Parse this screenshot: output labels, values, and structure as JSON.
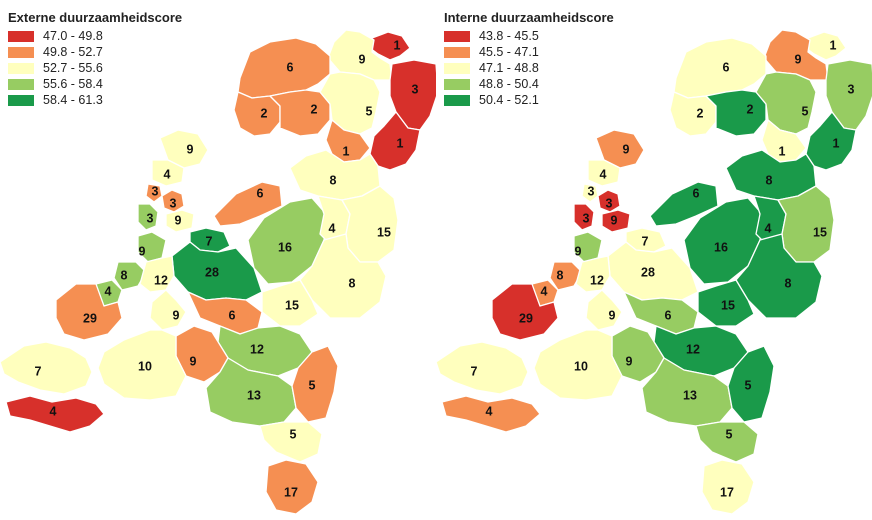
{
  "maps": [
    {
      "id": "externe",
      "title": "Externe duurzaamheidscore",
      "legend": [
        {
          "label": "47.0 - 49.8",
          "color": "#d7302b"
        },
        {
          "label": "49.8 - 52.7",
          "color": "#f58f52"
        },
        {
          "label": "52.7 - 55.6",
          "color": "#ffffbe"
        },
        {
          "label": "55.6 - 58.4",
          "color": "#97cc62"
        },
        {
          "label": "58.4 - 61.3",
          "color": "#1a9a4a"
        }
      ],
      "regions": [
        {
          "label": "1",
          "cls": 0
        },
        {
          "label": "9",
          "cls": 2
        },
        {
          "label": "6",
          "cls": 1
        },
        {
          "label": "2",
          "cls": 1
        },
        {
          "label": "2",
          "cls": 1
        },
        {
          "label": "5",
          "cls": 2
        },
        {
          "label": "3",
          "cls": 0
        },
        {
          "label": "1",
          "cls": 0
        },
        {
          "label": "1",
          "cls": 1
        },
        {
          "label": "8",
          "cls": 2
        },
        {
          "label": "9",
          "cls": 2
        },
        {
          "label": "4",
          "cls": 2
        },
        {
          "label": "3",
          "cls": 1
        },
        {
          "label": "3",
          "cls": 1
        },
        {
          "label": "3",
          "cls": 3
        },
        {
          "label": "9",
          "cls": 2
        },
        {
          "label": "6",
          "cls": 1
        },
        {
          "label": "7",
          "cls": 4
        },
        {
          "label": "16",
          "cls": 3
        },
        {
          "label": "4",
          "cls": 2
        },
        {
          "label": "15",
          "cls": 2
        },
        {
          "label": "9",
          "cls": 3
        },
        {
          "label": "28",
          "cls": 4
        },
        {
          "label": "8",
          "cls": 3
        },
        {
          "label": "12",
          "cls": 2
        },
        {
          "label": "4",
          "cls": 3
        },
        {
          "label": "8",
          "cls": 2
        },
        {
          "label": "15",
          "cls": 2
        },
        {
          "label": "29",
          "cls": 1
        },
        {
          "label": "9",
          "cls": 2
        },
        {
          "label": "6",
          "cls": 1
        },
        {
          "label": "12",
          "cls": 3
        },
        {
          "label": "9",
          "cls": 1
        },
        {
          "label": "10",
          "cls": 2
        },
        {
          "label": "7",
          "cls": 2
        },
        {
          "label": "13",
          "cls": 3
        },
        {
          "label": "5",
          "cls": 1
        },
        {
          "label": "4",
          "cls": 0
        },
        {
          "label": "5",
          "cls": 2
        },
        {
          "label": "17",
          "cls": 1
        }
      ]
    },
    {
      "id": "interne",
      "title": "Interne duurzaamheidscore",
      "legend": [
        {
          "label": "43.8 - 45.5",
          "color": "#d7302b"
        },
        {
          "label": "45.5 - 47.1",
          "color": "#f58f52"
        },
        {
          "label": "47.1 - 48.8",
          "color": "#ffffbe"
        },
        {
          "label": "48.8 - 50.4",
          "color": "#97cc62"
        },
        {
          "label": "50.4 - 52.1",
          "color": "#1a9a4a"
        }
      ],
      "regions": [
        {
          "label": "1",
          "cls": 2
        },
        {
          "label": "9",
          "cls": 1
        },
        {
          "label": "6",
          "cls": 2
        },
        {
          "label": "2",
          "cls": 2
        },
        {
          "label": "2",
          "cls": 4
        },
        {
          "label": "5",
          "cls": 3
        },
        {
          "label": "3",
          "cls": 3
        },
        {
          "label": "1",
          "cls": 4
        },
        {
          "label": "1",
          "cls": 2
        },
        {
          "label": "8",
          "cls": 4
        },
        {
          "label": "9",
          "cls": 1
        },
        {
          "label": "4",
          "cls": 2
        },
        {
          "label": "3",
          "cls": 2
        },
        {
          "label": "3",
          "cls": 0
        },
        {
          "label": "3",
          "cls": 0
        },
        {
          "label": "9",
          "cls": 0
        },
        {
          "label": "6",
          "cls": 4
        },
        {
          "label": "7",
          "cls": 2
        },
        {
          "label": "16",
          "cls": 4
        },
        {
          "label": "4",
          "cls": 4
        },
        {
          "label": "15",
          "cls": 3
        },
        {
          "label": "9",
          "cls": 3
        },
        {
          "label": "28",
          "cls": 2
        },
        {
          "label": "8",
          "cls": 1
        },
        {
          "label": "12",
          "cls": 2
        },
        {
          "label": "4",
          "cls": 1
        },
        {
          "label": "8",
          "cls": 4
        },
        {
          "label": "15",
          "cls": 4
        },
        {
          "label": "29",
          "cls": 0
        },
        {
          "label": "9",
          "cls": 2
        },
        {
          "label": "6",
          "cls": 3
        },
        {
          "label": "12",
          "cls": 4
        },
        {
          "label": "9",
          "cls": 3
        },
        {
          "label": "10",
          "cls": 2
        },
        {
          "label": "7",
          "cls": 2
        },
        {
          "label": "13",
          "cls": 3
        },
        {
          "label": "5",
          "cls": 4
        },
        {
          "label": "4",
          "cls": 1
        },
        {
          "label": "5",
          "cls": 3
        },
        {
          "label": "17",
          "cls": 2
        }
      ]
    }
  ]
}
